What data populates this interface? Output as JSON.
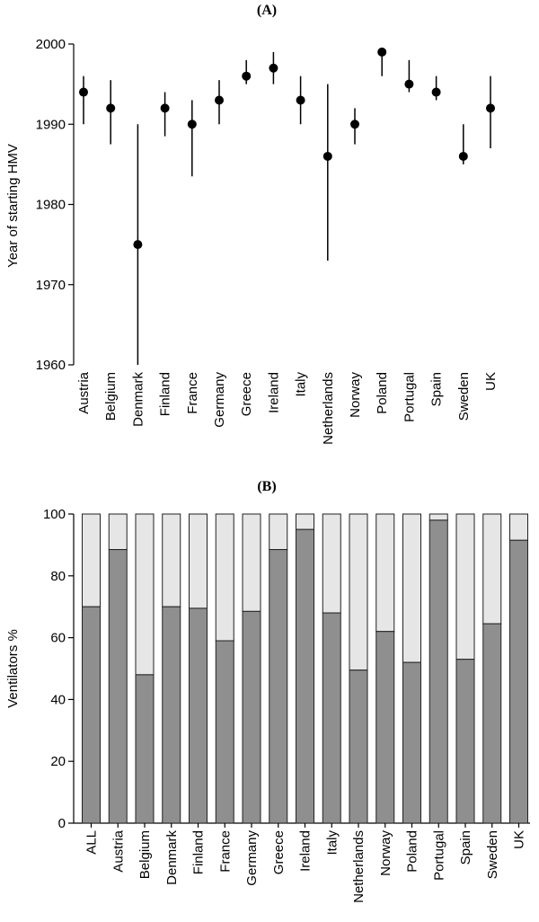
{
  "chart_data": [
    {
      "panel_label": "(A)",
      "type": "scatter",
      "ylabel": "Year of starting HMV",
      "ylim": [
        1960,
        2000
      ],
      "yticks": [
        "1960",
        "1970",
        "1980",
        "1990",
        "2000"
      ],
      "categories": [
        "Austria",
        "Belgium",
        "Denmark",
        "Finland",
        "France",
        "Germany",
        "Greece",
        "Ireland",
        "Italy",
        "Netherlands",
        "Norway",
        "Poland",
        "Portugal",
        "Spain",
        "Sweden",
        "UK"
      ],
      "values": [
        1994,
        1992,
        1975,
        1992,
        1990,
        1993,
        1996,
        1997,
        1993,
        1986,
        1990,
        1999,
        1995,
        1994,
        1986,
        1992
      ],
      "error_low": [
        1990,
        1987.5,
        1960,
        1988.5,
        1983.5,
        1990,
        1995,
        1995,
        1990,
        1973,
        1987.5,
        1996,
        1994,
        1993,
        1985,
        1987
      ],
      "error_high": [
        1996,
        1995.5,
        1990,
        1994,
        1993,
        1995.5,
        1998,
        1999,
        1996,
        1995,
        1992,
        1999,
        1998,
        1996,
        1990,
        1996
      ]
    },
    {
      "panel_label": "(B)",
      "type": "bar",
      "stacked": true,
      "ylabel": "Ventilators %",
      "ylim": [
        0,
        100
      ],
      "yticks": [
        "0",
        "20",
        "40",
        "60",
        "80",
        "100"
      ],
      "categories": [
        "ALL",
        "Austria",
        "Belgium",
        "Denmark",
        "Finland",
        "France",
        "Germany",
        "Greece",
        "Ireland",
        "Italy",
        "Netherlands",
        "Norway",
        "Poland",
        "Portugal",
        "Spain",
        "Sweden",
        "UK"
      ],
      "series": [
        {
          "color": "#8f8f8f",
          "values": [
            70,
            88.5,
            48,
            70,
            69.5,
            59,
            68.5,
            88.5,
            95,
            68,
            49.5,
            62,
            52,
            98,
            53,
            64.5,
            91.5
          ]
        },
        {
          "color": "#e6e6e6",
          "values": [
            30,
            11.5,
            52,
            30,
            30.5,
            41,
            31.5,
            11.5,
            5,
            32,
            50.5,
            38,
            48,
            2,
            47,
            35.5,
            8.5
          ]
        }
      ]
    }
  ]
}
